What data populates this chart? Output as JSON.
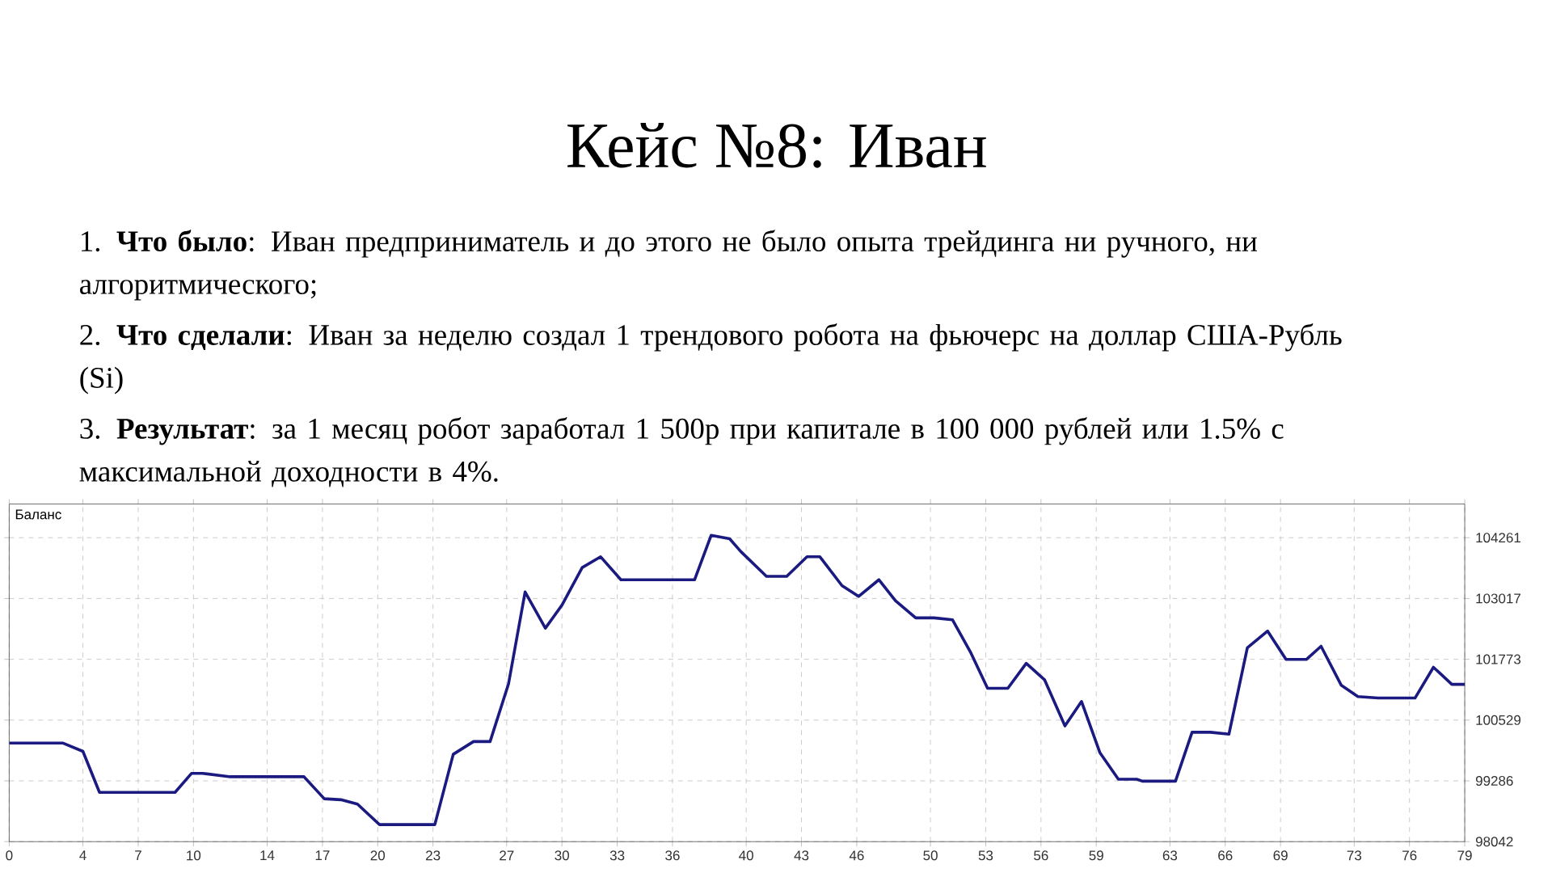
{
  "chart_data": {
    "type": "line",
    "title": "Кейс №8: Иван",
    "annotations": [
      "Баланс",
      "1. **Что было**: Иван предприниматель и до этого не было опыта трейдинга ни ручного, ни алгоритмического;",
      "2. **Что сделали**: Иван за неделю создал 1 трендового робота на фьючерс на доллар США-Рубль (Si)",
      "3. **Результат**: за 1 месяц робот заработал 1 500р при капитале в 100 000 рублей или 1.5% с максимальной доходности в 4%."
    ],
    "x": [
      0,
      2.9,
      4.0,
      4.9,
      9.0,
      9.9,
      10.5,
      12.0,
      16.0,
      17.1,
      18.0,
      18.9,
      20.1,
      23.1,
      24.1,
      25.2,
      26.1,
      27.1,
      28.0,
      29.1,
      30.0,
      31.1,
      32.1,
      33.2,
      37.2,
      38.1,
      39.1,
      39.7,
      41.1,
      42.2,
      43.3,
      44.0,
      45.2,
      46.1,
      47.2,
      48.1,
      49.2,
      50.2,
      51.2,
      52.2,
      53.1,
      54.2,
      55.2,
      56.2,
      57.3,
      58.2,
      59.2,
      60.2,
      61.2,
      61.5,
      63.3,
      64.2,
      65.2,
      66.2,
      67.2,
      68.3,
      69.3,
      70.4,
      71.2,
      72.3,
      73.2,
      74.3,
      76.3,
      77.3,
      78.3,
      79
    ],
    "series": [
      {
        "color": "#1a1a80",
        "values": [
          100060,
          100060,
          99890,
          99050,
          99050,
          99440,
          99440,
          99370,
          99370,
          98920,
          98900,
          98810,
          98390,
          98390,
          99830,
          100090,
          100090,
          101270,
          103150,
          102410,
          102880,
          103650,
          103870,
          103400,
          103400,
          104310,
          104240,
          103980,
          103470,
          103470,
          103870,
          103870,
          103280,
          103060,
          103400,
          102970,
          102620,
          102620,
          102580,
          101900,
          101180,
          101180,
          101690,
          101350,
          100410,
          100910,
          99860,
          99320,
          99320,
          99280,
          99280,
          100280,
          100280,
          100240,
          102010,
          102350,
          101770,
          101770,
          102040,
          101240,
          101010,
          100980,
          100980,
          101610,
          101260,
          101260
        ]
      }
    ],
    "xlim": [
      0,
      79
    ],
    "ylim": [
      98042,
      104950
    ],
    "xticks": [
      0,
      4,
      7,
      10,
      14,
      17,
      20,
      23,
      27,
      30,
      33,
      36,
      40,
      43,
      46,
      50,
      53,
      56,
      59,
      63,
      66,
      69,
      73,
      76,
      79
    ],
    "yticks": [
      98042,
      99286,
      100529,
      101773,
      103017,
      104261
    ],
    "grid": true,
    "line_style": "solid"
  }
}
